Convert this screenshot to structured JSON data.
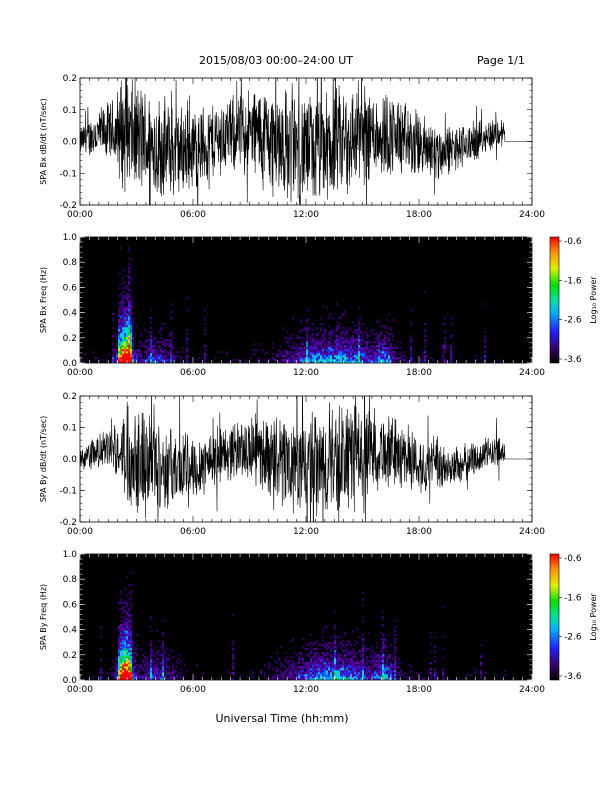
{
  "header": {
    "title": "2015/08/03  00:00–24:00 UT",
    "page_label": "Page 1/1"
  },
  "footer": {
    "x_axis_title": "Universal Time (hh:mm)"
  },
  "colorbar": {
    "label": "Log₁₀ Power",
    "ticks": [
      "-0.6",
      "-1.6",
      "-2.6",
      "-3.6"
    ]
  },
  "chart_data": [
    {
      "type": "line",
      "ylabel": "SPA Bx dB/dt (nT/sec)",
      "xlim": [
        0,
        24
      ],
      "ylim": [
        -0.2,
        0.2
      ],
      "x_ticks": [
        "00:00",
        "06:00",
        "12:00",
        "18:00",
        "24:00"
      ],
      "y_ticks": [
        "0.2",
        "0.1",
        "0.0",
        "-0.1",
        "-0.2"
      ],
      "series": [
        {
          "color": "#000000",
          "envelope": {
            "x": [
              0,
              1,
              1.9,
              2.1,
              3,
              4.5,
              6,
              8,
              10.5,
              12,
              14,
              16.5,
              18,
              20,
              22.5,
              22.6,
              24
            ],
            "amplitude": [
              0.05,
              0.09,
              0.12,
              0.2,
              0.2,
              0.18,
              0.15,
              0.13,
              0.2,
              0.2,
              0.2,
              0.15,
              0.12,
              0.08,
              0.05,
              0.0,
              0.0
            ]
          }
        }
      ]
    },
    {
      "type": "heatmap",
      "ylabel": "SPA Bx Freq (Hz)",
      "xlim": [
        0,
        24
      ],
      "ylim": [
        0,
        1
      ],
      "x_ticks": [
        "00:00",
        "06:00",
        "12:00",
        "18:00",
        "24:00"
      ],
      "y_ticks": [
        "1.0",
        "0.8",
        "0.6",
        "0.4",
        "0.2",
        "0.0"
      ],
      "colorbar_range": [
        -3.6,
        -0.6
      ],
      "colorbar_label": "Log₁₀ Power",
      "data_end": 22.6
    },
    {
      "type": "line",
      "ylabel": "SPA By dB/dt (nT/sec)",
      "xlim": [
        0,
        24
      ],
      "ylim": [
        -0.2,
        0.2
      ],
      "x_ticks": [
        "00:00",
        "06:00",
        "12:00",
        "18:00",
        "24:00"
      ],
      "y_ticks": [
        "0.2",
        "0.1",
        "0.0",
        "-0.1",
        "-0.2"
      ],
      "series": [
        {
          "color": "#000000",
          "envelope": {
            "x": [
              0,
              1,
              2.2,
              2.5,
              3.5,
              4.5,
              6,
              8,
              10.5,
              12,
              14,
              16,
              18,
              20,
              22.5,
              22.6,
              24
            ],
            "amplitude": [
              0.04,
              0.06,
              0.1,
              0.2,
              0.2,
              0.15,
              0.12,
              0.1,
              0.15,
              0.2,
              0.2,
              0.14,
              0.1,
              0.07,
              0.05,
              0.0,
              0.0
            ]
          }
        }
      ]
    },
    {
      "type": "heatmap",
      "ylabel": "SPA By Freq (Hz)",
      "xlim": [
        0,
        24
      ],
      "ylim": [
        0,
        1
      ],
      "x_ticks": [
        "00:00",
        "06:00",
        "12:00",
        "18:00",
        "24:00"
      ],
      "y_ticks": [
        "1.0",
        "0.8",
        "0.6",
        "0.4",
        "0.2",
        "0.0"
      ],
      "colorbar_range": [
        -3.6,
        -0.6
      ],
      "colorbar_label": "Log₁₀ Power",
      "data_end": 22.6
    }
  ]
}
